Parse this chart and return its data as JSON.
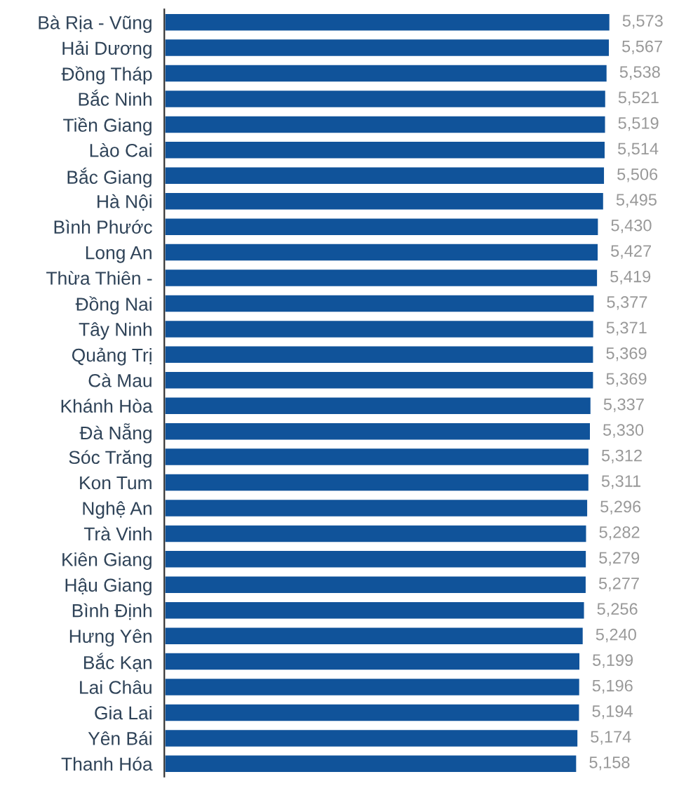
{
  "chart_data": {
    "type": "bar",
    "orientation": "horizontal",
    "categories": [
      "Bà Rịa - Vũng",
      "Hải Dương",
      "Đồng Tháp",
      "Bắc Ninh",
      "Tiền Giang",
      "Lào Cai",
      "Bắc Giang",
      "Hà Nội",
      "Bình Phước",
      "Long An",
      "Thừa Thiên -",
      "Đồng Nai",
      "Tây Ninh",
      "Quảng Trị",
      "Cà Mau",
      "Khánh Hòa",
      "Đà Nẵng",
      "Sóc Trăng",
      "Kon Tum",
      "Nghệ An",
      "Trà Vinh",
      "Kiên Giang",
      "Hậu Giang",
      "Bình Định",
      "Hưng Yên",
      "Bắc Kạn",
      "Lai Châu",
      "Gia Lai",
      "Yên Bái",
      "Thanh Hóa"
    ],
    "values": [
      5573,
      5567,
      5538,
      5521,
      5519,
      5514,
      5506,
      5495,
      5430,
      5427,
      5419,
      5377,
      5371,
      5369,
      5369,
      5337,
      5330,
      5312,
      5311,
      5296,
      5282,
      5279,
      5277,
      5256,
      5240,
      5199,
      5196,
      5194,
      5174,
      5158
    ],
    "value_labels": [
      "5,573",
      "5,567",
      "5,538",
      "5,521",
      "5,519",
      "5,514",
      "5,506",
      "5,495",
      "5,430",
      "5,427",
      "5,419",
      "5,377",
      "5,371",
      "5,369",
      "5,369",
      "5,337",
      "5,330",
      "5,312",
      "5,311",
      "5,296",
      "5,282",
      "5,279",
      "5,277",
      "5,256",
      "5,240",
      "5,199",
      "5,196",
      "5,194",
      "5,174",
      "5,158"
    ],
    "color": "#10539a",
    "tick_labels": "y",
    "grid": false,
    "legend": false
  }
}
